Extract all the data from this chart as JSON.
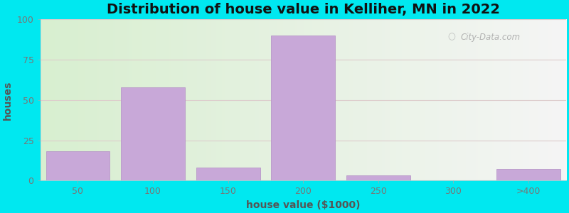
{
  "title": "Distribution of house value in Kelliher, MN in 2022",
  "xlabel": "house value ($1000)",
  "ylabel": "houses",
  "bar_labels": [
    "50",
    "100",
    "150",
    "200",
    "250",
    "300",
    ">400"
  ],
  "bar_values": [
    18,
    58,
    8,
    90,
    3,
    0,
    7
  ],
  "bar_color": "#c8a8d8",
  "bar_edge_color": "#b898c8",
  "outer_bg": "#00e8f0",
  "ylim": [
    0,
    100
  ],
  "yticks": [
    0,
    25,
    50,
    75,
    100
  ],
  "title_fontsize": 14,
  "axis_label_fontsize": 10,
  "tick_fontsize": 9,
  "tick_color": "#777777",
  "label_color": "#555555",
  "grid_color": "#ddcccc",
  "watermark": "City-Data.com"
}
